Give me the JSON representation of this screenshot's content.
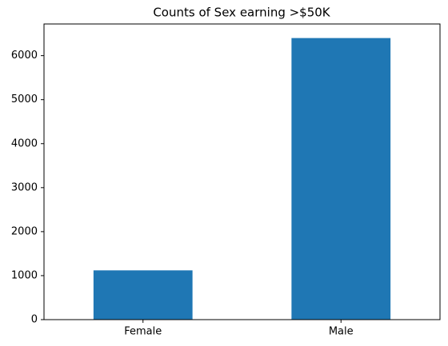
{
  "chart_data": {
    "type": "bar",
    "title": "Counts of Sex earning >$50K",
    "categories": [
      "Female",
      "Male"
    ],
    "values": [
      1120,
      6400
    ],
    "color": "#1f77b4",
    "ylim": [
      0,
      6720
    ],
    "yticks": [
      0,
      1000,
      2000,
      3000,
      4000,
      5000,
      6000
    ],
    "grid": false
  }
}
